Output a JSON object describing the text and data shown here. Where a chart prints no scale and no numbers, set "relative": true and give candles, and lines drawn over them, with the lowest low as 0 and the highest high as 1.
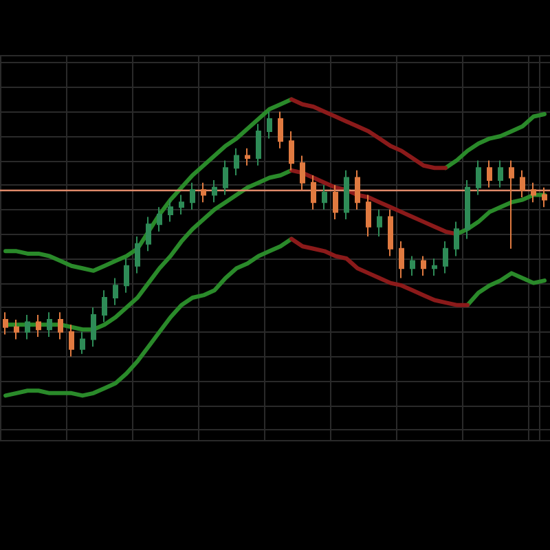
{
  "chart_data": {
    "type": "candlestick",
    "relative": true,
    "grid": true,
    "categories": [
      null,
      null,
      null,
      null,
      null,
      null,
      null,
      null,
      null,
      null,
      null,
      null,
      null,
      null,
      null,
      null,
      null,
      null,
      null,
      null,
      null,
      null,
      null,
      null,
      null,
      null,
      null,
      null,
      null,
      null,
      null,
      null,
      null,
      null,
      null,
      null,
      null,
      null,
      null,
      null,
      null,
      null,
      null,
      null,
      null,
      null,
      null,
      null,
      null,
      null
    ],
    "ohlc": [
      [
        0.15,
        0.18,
        0.09,
        0.12
      ],
      [
        0.12,
        0.15,
        0.07,
        0.1
      ],
      [
        0.1,
        0.17,
        0.07,
        0.14
      ],
      [
        0.14,
        0.17,
        0.08,
        0.11
      ],
      [
        0.11,
        0.18,
        0.08,
        0.15
      ],
      [
        0.15,
        0.18,
        0.07,
        0.1
      ],
      [
        0.1,
        0.13,
        0,
        0.03
      ],
      [
        0.03,
        0.1,
        0.01,
        0.07
      ],
      [
        0.07,
        0.2,
        0.04,
        0.17
      ],
      [
        0.17,
        0.27,
        0.14,
        0.24
      ],
      [
        0.24,
        0.32,
        0.21,
        0.29
      ],
      [
        0.29,
        0.4,
        0.26,
        0.37
      ],
      [
        0.37,
        0.49,
        0.34,
        0.46
      ],
      [
        0.46,
        0.57,
        0.43,
        0.54
      ],
      [
        0.54,
        0.61,
        0.51,
        0.58
      ],
      [
        0.58,
        0.64,
        0.55,
        0.61
      ],
      [
        0.61,
        0.66,
        0.58,
        0.63
      ],
      [
        0.63,
        0.71,
        0.6,
        0.68
      ],
      [
        0.68,
        0.71,
        0.63,
        0.66
      ],
      [
        0.66,
        0.72,
        0.63,
        0.69
      ],
      [
        0.69,
        0.8,
        0.66,
        0.77
      ],
      [
        0.77,
        0.85,
        0.74,
        0.82
      ],
      [
        0.82,
        0.85,
        0.78,
        0.81
      ],
      [
        0.81,
        0.95,
        0.78,
        0.92
      ],
      [
        0.92,
        1.0,
        0.89,
        0.97
      ],
      [
        0.97,
        1.0,
        0.85,
        0.88
      ],
      [
        0.88,
        0.92,
        0.76,
        0.79
      ],
      [
        0.79,
        0.82,
        0.68,
        0.71
      ],
      [
        0.71,
        0.74,
        0.6,
        0.63
      ],
      [
        0.63,
        0.7,
        0.6,
        0.67
      ],
      [
        0.67,
        0.7,
        0.56,
        0.59
      ],
      [
        0.59,
        0.76,
        0.56,
        0.73
      ],
      [
        0.73,
        0.76,
        0.6,
        0.63
      ],
      [
        0.63,
        0.66,
        0.49,
        0.53
      ],
      [
        0.53,
        0.6,
        0.49,
        0.57
      ],
      [
        0.57,
        0.6,
        0.41,
        0.44
      ],
      [
        0.44,
        0.47,
        0.32,
        0.36
      ],
      [
        0.36,
        0.41,
        0.33,
        0.39
      ],
      [
        0.39,
        0.41,
        0.33,
        0.36
      ],
      [
        0.36,
        0.4,
        0.33,
        0.37
      ],
      [
        0.37,
        0.47,
        0.34,
        0.44
      ],
      [
        0.44,
        0.55,
        0.41,
        0.52
      ],
      [
        0.52,
        0.72,
        0.48,
        0.69
      ],
      [
        0.69,
        0.8,
        0.66,
        0.77
      ],
      [
        0.77,
        0.8,
        0.69,
        0.72
      ],
      [
        0.72,
        0.8,
        0.69,
        0.77
      ],
      [
        0.77,
        0.8,
        0.44,
        0.73
      ],
      [
        0.73,
        0.76,
        0.65,
        0.68
      ],
      [
        0.68,
        0.71,
        0.63,
        0.66
      ],
      [
        0.66,
        0.69,
        0.61,
        0.64
      ]
    ],
    "series": [
      {
        "type": "line",
        "color": "#2a8a2a",
        "values": [
          0.43,
          0.43,
          0.42,
          0.42,
          0.41,
          0.39,
          0.37,
          0.36,
          0.35,
          0.37,
          0.39,
          0.41,
          0.44,
          0.51,
          0.58,
          0.64,
          0.69,
          0.74,
          0.78,
          0.82,
          0.86,
          0.89,
          0.93,
          0.97,
          1.01,
          1.03,
          1.05,
          null,
          null,
          null,
          null,
          null,
          null,
          null,
          null,
          null,
          null,
          null,
          null,
          null,
          0.77,
          0.8,
          0.84,
          0.87,
          0.89,
          0.9,
          0.92,
          0.94,
          0.98,
          0.99
        ]
      },
      {
        "type": "line",
        "color": "#8b1a1a",
        "values": [
          null,
          null,
          null,
          null,
          null,
          null,
          null,
          null,
          null,
          null,
          null,
          null,
          null,
          null,
          null,
          null,
          null,
          null,
          null,
          null,
          null,
          null,
          null,
          null,
          null,
          null,
          1.05,
          1.03,
          1.02,
          1.0,
          0.98,
          0.96,
          0.94,
          0.92,
          0.89,
          0.86,
          0.84,
          0.81,
          0.78,
          0.77,
          0.77,
          null,
          null,
          null,
          null,
          null,
          null,
          null,
          null,
          null
        ]
      },
      {
        "type": "line",
        "color": "#2a8a2a",
        "values": [
          0.13,
          0.13,
          0.13,
          0.13,
          0.13,
          0.13,
          0.12,
          0.11,
          0.11,
          0.13,
          0.16,
          0.2,
          0.24,
          0.3,
          0.36,
          0.41,
          0.47,
          0.52,
          0.56,
          0.6,
          0.63,
          0.66,
          0.69,
          0.71,
          0.73,
          0.74,
          0.76,
          null,
          null,
          null,
          null,
          null,
          null,
          null,
          null,
          null,
          null,
          null,
          null,
          null,
          null,
          0.5,
          0.52,
          0.55,
          0.59,
          0.61,
          0.63,
          0.64,
          0.66,
          0.66
        ]
      },
      {
        "type": "line",
        "color": "#8b1a1a",
        "values": [
          null,
          null,
          null,
          null,
          null,
          null,
          null,
          null,
          null,
          null,
          null,
          null,
          null,
          null,
          null,
          null,
          null,
          null,
          null,
          null,
          null,
          null,
          null,
          null,
          null,
          null,
          0.76,
          0.75,
          0.73,
          0.71,
          0.69,
          0.68,
          0.66,
          0.65,
          0.63,
          0.61,
          0.59,
          0.57,
          0.55,
          0.53,
          0.51,
          0.5,
          null,
          null,
          null,
          null,
          null,
          null,
          null,
          null
        ]
      },
      {
        "type": "line",
        "color": "#2a8a2a",
        "values": [
          -0.16,
          -0.15,
          -0.14,
          -0.14,
          -0.15,
          -0.15,
          -0.15,
          -0.16,
          -0.15,
          -0.13,
          -0.11,
          -0.07,
          -0.02,
          0.04,
          0.1,
          0.16,
          0.21,
          0.24,
          0.25,
          0.27,
          0.32,
          0.36,
          0.38,
          0.41,
          0.43,
          0.45,
          0.48,
          null,
          null,
          null,
          null,
          null,
          null,
          null,
          null,
          null,
          null,
          null,
          null,
          null,
          null,
          null,
          0.21,
          0.26,
          0.29,
          0.31,
          0.34,
          0.32,
          0.3,
          0.31
        ]
      },
      {
        "type": "line",
        "color": "#8b1a1a",
        "values": [
          null,
          null,
          null,
          null,
          null,
          null,
          null,
          null,
          null,
          null,
          null,
          null,
          null,
          null,
          null,
          null,
          null,
          null,
          null,
          null,
          null,
          null,
          null,
          null,
          null,
          null,
          0.48,
          0.45,
          0.44,
          0.43,
          0.41,
          0.4,
          0.36,
          0.34,
          0.32,
          0.3,
          0.29,
          0.27,
          0.25,
          0.23,
          0.22,
          0.21,
          0.21,
          null,
          null,
          null,
          null,
          null,
          null,
          null
        ]
      }
    ],
    "ref_lines": [
      {
        "axis": "y",
        "value": 0.675,
        "color": "#e08a6a"
      }
    ],
    "colors": [
      "#e07a40",
      "#e07a40",
      "#2e8b57",
      "#e07a40",
      "#2e8b57",
      "#e07a40",
      "#e07a40",
      "#2e8b57",
      "#2e8b57",
      "#2e8b57",
      "#2e8b57",
      "#2e8b57",
      "#2e8b57",
      "#2e8b57",
      "#2e8b57",
      "#2e8b57",
      "#2e8b57",
      "#2e8b57",
      "#e07a40",
      "#2e8b57",
      "#2e8b57",
      "#2e8b57",
      "#e07a40",
      "#2e8b57",
      "#2e8b57",
      "#e07a40",
      "#e07a40",
      "#e07a40",
      "#e07a40",
      "#2e8b57",
      "#e07a40",
      "#2e8b57",
      "#e07a40",
      "#e07a40",
      "#2e8b57",
      "#e07a40",
      "#e07a40",
      "#2e8b57",
      "#e07a40",
      "#2e8b57",
      "#2e8b57",
      "#2e8b57",
      "#2e8b57",
      "#2e8b57",
      "#e07a40",
      "#2e8b57",
      "#e07a40",
      "#e07a40",
      "#e07a40",
      "#e07a40"
    ]
  }
}
